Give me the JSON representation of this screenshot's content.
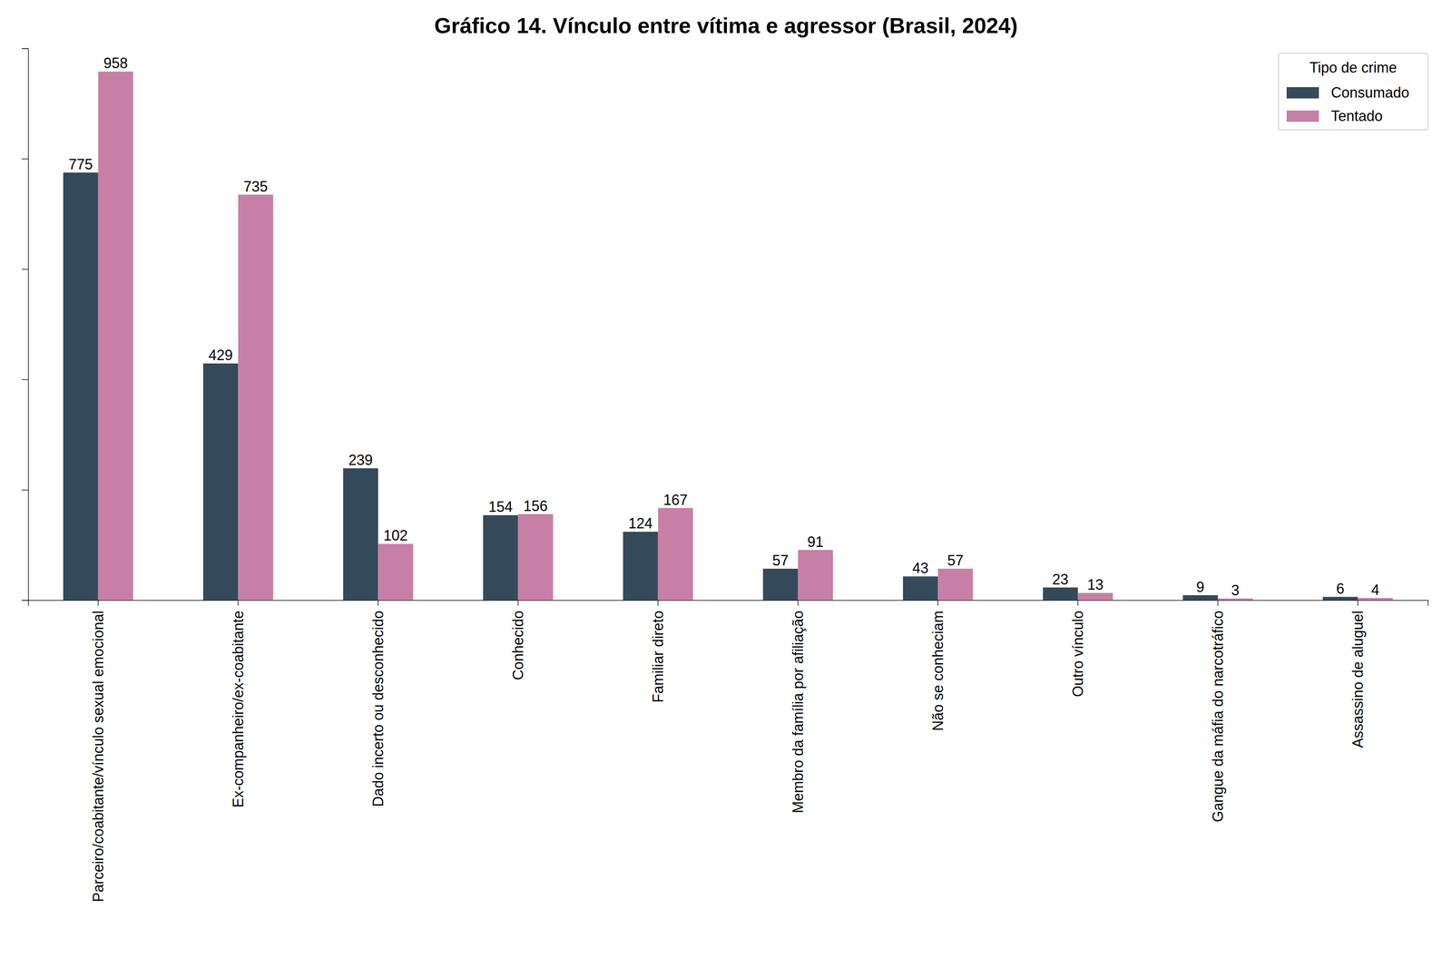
{
  "chart_data": {
    "type": "bar",
    "title": "Gráfico 14. Vínculo entre vítima e agressor (Brasil, 2024)",
    "categories": [
      "Parceiro/coabitante/vínculo sexual emocional",
      "Ex-companheiro/ex-coabitante",
      "Dado incerto ou desconhecido",
      "Conhecido",
      "Familiar direto",
      "Membro da família por afiliação",
      "Não se conheciam",
      "Outro vínculo",
      "Gangue da máfia do narcotráfico",
      "Assassino de aluguel"
    ],
    "series": [
      {
        "name": "Consumado",
        "color": "#344a5a",
        "values": [
          775,
          429,
          239,
          154,
          124,
          57,
          43,
          23,
          9,
          6
        ]
      },
      {
        "name": "Tentado",
        "color": "#c77fa6",
        "values": [
          958,
          735,
          102,
          156,
          167,
          91,
          57,
          13,
          3,
          4
        ]
      }
    ],
    "legend_title": "Tipo de crime",
    "legend": "upper right",
    "ylim": [
      0,
      1000
    ],
    "yticks": [
      0,
      200,
      400,
      600,
      800,
      1000
    ],
    "tick_labels": "x",
    "data_labels": true,
    "grid": false
  }
}
